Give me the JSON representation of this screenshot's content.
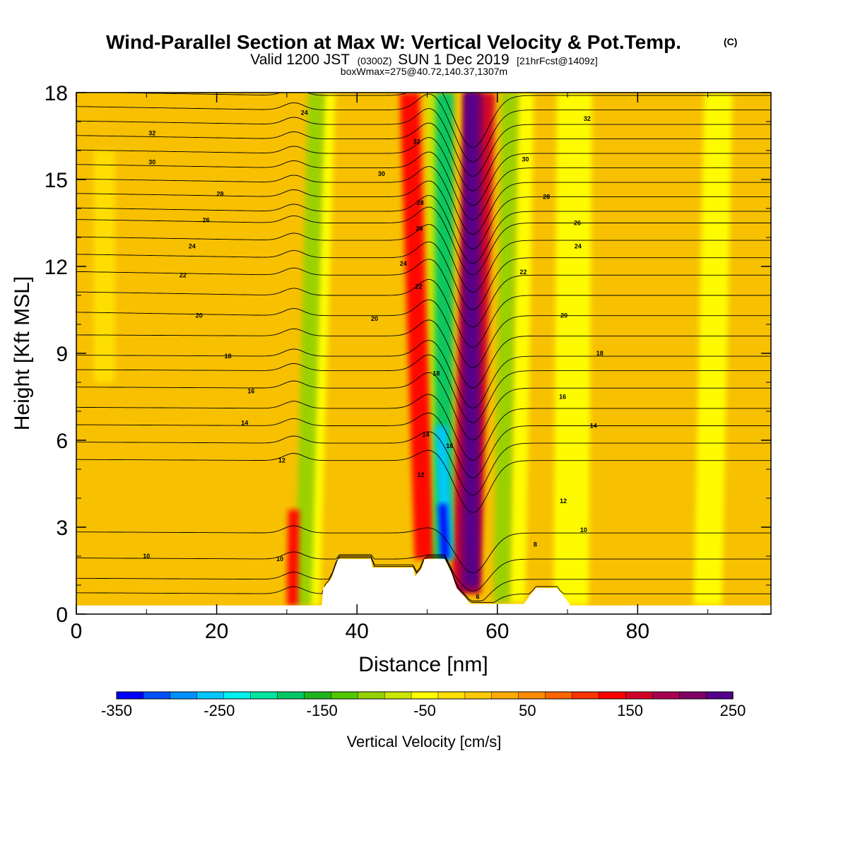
{
  "header": {
    "title": "Wind-Parallel Section at Max W: Vertical Velocity & Pot.Temp.",
    "title_mark": "(C)",
    "valid_prefix": "Valid 1200 JST",
    "valid_z": "(0300Z)",
    "valid_date": "SUN 1 Dec 2019",
    "forecast": "[21hrFcst@1409z]",
    "box_info": "boxWmax=275@40.72,140.37,1307m"
  },
  "chart_data": {
    "type": "heatmap",
    "xlabel": "Distance [nm]",
    "ylabel": "Height [Kft MSL]",
    "xlim": [
      0,
      99
    ],
    "ylim": [
      0,
      18
    ],
    "x_ticks": [
      "0",
      "20",
      "40",
      "60",
      "80"
    ],
    "y_ticks": [
      "0",
      "3",
      "6",
      "9",
      "12",
      "15",
      "18"
    ],
    "background_color": "#f7c000",
    "terrain_kft": [
      {
        "x": 35,
        "h": 0.35
      },
      {
        "x": 35.2,
        "h": 0.9
      },
      {
        "x": 36.3,
        "h": 1.2
      },
      {
        "x": 37.3,
        "h": 1.9
      },
      {
        "x": 42,
        "h": 1.9
      },
      {
        "x": 42.2,
        "h": 1.6
      },
      {
        "x": 48,
        "h": 1.6
      },
      {
        "x": 48.3,
        "h": 1.3
      },
      {
        "x": 49.3,
        "h": 1.6
      },
      {
        "x": 49.6,
        "h": 1.9
      },
      {
        "x": 52.5,
        "h": 1.9
      },
      {
        "x": 53.5,
        "h": 1.4
      },
      {
        "x": 54.2,
        "h": 0.9
      },
      {
        "x": 55.3,
        "h": 0.6
      },
      {
        "x": 56.2,
        "h": 0.35
      },
      {
        "x": 63.8,
        "h": 0.35
      },
      {
        "x": 64.5,
        "h": 0.6
      },
      {
        "x": 65.5,
        "h": 0.9
      },
      {
        "x": 68.5,
        "h": 0.9
      },
      {
        "x": 69.5,
        "h": 0.6
      },
      {
        "x": 70.3,
        "h": 0.35
      }
    ],
    "vertical_velocity_bands": [
      {
        "x_bottom": 30.8,
        "x_top": 31.0,
        "width_nm": 1.6,
        "y_from": 0.3,
        "y_to": 3.6,
        "value": 125
      },
      {
        "x_bottom": 32.3,
        "x_top": 34.2,
        "width_nm": 2.4,
        "y_from": 0.3,
        "y_to": 18,
        "value": -100
      },
      {
        "x_bottom": 33.8,
        "x_top": 36.0,
        "width_nm": 1.8,
        "y_from": 0.3,
        "y_to": 18,
        "value": -50
      },
      {
        "x_bottom": 49.6,
        "x_top": 47.5,
        "width_nm": 2.8,
        "y_from": 1.9,
        "y_to": 18,
        "value": 125
      },
      {
        "x_bottom": 51.0,
        "x_top": 51.0,
        "width_nm": 2.0,
        "y_from": 1.9,
        "y_to": 18,
        "value": -75
      },
      {
        "x_bottom": 52.3,
        "x_top": 52.5,
        "width_nm": 2.6,
        "y_from": 1.9,
        "y_to": 18,
        "value": -175
      },
      {
        "x_bottom": 52.8,
        "x_top": 52.0,
        "width_nm": 1.8,
        "y_from": 1.9,
        "y_to": 6.5,
        "value": -250
      },
      {
        "x_bottom": 52.6,
        "x_top": 52.2,
        "width_nm": 1.2,
        "y_from": 1.9,
        "y_to": 3.8,
        "value": -325
      },
      {
        "x_bottom": 55.5,
        "x_top": 57.6,
        "width_nm": 4.2,
        "y_from": 0.7,
        "y_to": 18,
        "value": 150
      },
      {
        "x_bottom": 56.0,
        "x_top": 56.6,
        "width_nm": 2.8,
        "y_from": 0.8,
        "y_to": 18,
        "value": 200
      },
      {
        "x_bottom": 56.3,
        "x_top": 56.3,
        "width_nm": 1.8,
        "y_from": 1.0,
        "y_to": 18,
        "value": 250
      },
      {
        "x_bottom": 60.6,
        "x_top": 61.8,
        "width_nm": 2.4,
        "y_from": 0.4,
        "y_to": 18,
        "value": -100
      },
      {
        "x_bottom": 62.8,
        "x_top": 64.0,
        "width_nm": 2.4,
        "y_from": 0.4,
        "y_to": 18,
        "value": -50
      },
      {
        "x_bottom": 70.5,
        "x_top": 71.0,
        "width_nm": 5.0,
        "y_from": 0.3,
        "y_to": 18,
        "value": -40
      },
      {
        "x_bottom": 90.0,
        "x_top": 91.5,
        "width_nm": 4.0,
        "y_from": 0.3,
        "y_to": 18,
        "value": -40
      },
      {
        "x_bottom": 4.0,
        "x_top": 4.0,
        "width_nm": 3.0,
        "y_from": 8.0,
        "y_to": 16.0,
        "value": -30
      }
    ],
    "colorbar": {
      "label": "Vertical Velocity [cm/s]",
      "min": -350,
      "max": 250,
      "tick_labels": [
        "-350",
        "-250",
        "-150",
        "-50",
        "50",
        "150",
        "250"
      ],
      "colors": [
        "#0000ff",
        "#0050ff",
        "#0090ff",
        "#00c8ff",
        "#00f0f0",
        "#00e6a0",
        "#00c864",
        "#1eb41e",
        "#50c800",
        "#96d200",
        "#cce600",
        "#ffff00",
        "#ffe000",
        "#ffc800",
        "#ffaa00",
        "#ff8c00",
        "#ff6400",
        "#ff3200",
        "#ff0000",
        "#d20028",
        "#aa0050",
        "#820064",
        "#55008c"
      ]
    },
    "isentropes": {
      "levels": [
        8,
        9,
        10,
        11,
        12,
        13,
        14,
        15,
        16,
        17,
        18,
        19,
        20,
        21,
        22,
        23,
        24,
        25,
        26,
        27,
        28,
        29,
        30,
        31,
        32,
        33,
        34
      ],
      "base_height_kft": {
        "8": 0.7,
        "9": 1.2,
        "10": 1.9,
        "11": 2.8,
        "12": 5.3,
        "13": 5.9,
        "14": 6.5,
        "15": 7.1,
        "16": 7.8,
        "17": 8.4,
        "18": 8.9,
        "19": 9.6,
        "20": 10.3,
        "21": 11.0,
        "22": 11.7,
        "23": 12.3,
        "24": 12.9,
        "25": 13.5,
        "26": 13.9,
        "27": 14.4,
        "28": 14.9,
        "29": 15.4,
        "30": 15.9,
        "31": 16.4,
        "32": 16.9,
        "33": 17.4,
        "34": 17.9
      },
      "labels": [
        {
          "text": "24",
          "x": 32.5,
          "y": 17.3
        },
        {
          "text": "32",
          "x": 10.8,
          "y": 16.6
        },
        {
          "text": "30",
          "x": 10.8,
          "y": 15.6
        },
        {
          "text": "28",
          "x": 20.5,
          "y": 14.5
        },
        {
          "text": "26",
          "x": 18.5,
          "y": 13.6
        },
        {
          "text": "24",
          "x": 16.5,
          "y": 12.7
        },
        {
          "text": "22",
          "x": 15.2,
          "y": 11.7
        },
        {
          "text": "20",
          "x": 17.5,
          "y": 10.3
        },
        {
          "text": "18",
          "x": 21.6,
          "y": 8.9
        },
        {
          "text": "16",
          "x": 24.9,
          "y": 7.7
        },
        {
          "text": "14",
          "x": 24.0,
          "y": 6.6
        },
        {
          "text": "12",
          "x": 29.3,
          "y": 5.3
        },
        {
          "text": "10",
          "x": 10.0,
          "y": 2.0
        },
        {
          "text": "10",
          "x": 29.0,
          "y": 1.9
        },
        {
          "text": "32",
          "x": 48.5,
          "y": 16.3
        },
        {
          "text": "30",
          "x": 43.5,
          "y": 15.2
        },
        {
          "text": "28",
          "x": 49.0,
          "y": 14.2
        },
        {
          "text": "26",
          "x": 48.9,
          "y": 13.3
        },
        {
          "text": "24",
          "x": 46.6,
          "y": 12.1
        },
        {
          "text": "22",
          "x": 48.8,
          "y": 11.3
        },
        {
          "text": "20",
          "x": 42.5,
          "y": 10.2
        },
        {
          "text": "18",
          "x": 51.3,
          "y": 8.3
        },
        {
          "text": "14",
          "x": 49.8,
          "y": 6.2
        },
        {
          "text": "16",
          "x": 53.2,
          "y": 5.8
        },
        {
          "text": "12",
          "x": 49.1,
          "y": 4.8
        },
        {
          "text": "6",
          "x": 57.2,
          "y": 0.6
        },
        {
          "text": "32",
          "x": 72.8,
          "y": 17.1
        },
        {
          "text": "30",
          "x": 64.0,
          "y": 15.7
        },
        {
          "text": "28",
          "x": 67.0,
          "y": 14.4
        },
        {
          "text": "26",
          "x": 71.4,
          "y": 13.5
        },
        {
          "text": "24",
          "x": 71.5,
          "y": 12.7
        },
        {
          "text": "22",
          "x": 63.7,
          "y": 11.8
        },
        {
          "text": "20",
          "x": 69.5,
          "y": 10.3
        },
        {
          "text": "18",
          "x": 74.6,
          "y": 9.0
        },
        {
          "text": "16",
          "x": 69.3,
          "y": 7.5
        },
        {
          "text": "14",
          "x": 73.7,
          "y": 6.5
        },
        {
          "text": "12",
          "x": 69.4,
          "y": 3.9
        },
        {
          "text": "10",
          "x": 72.3,
          "y": 2.9
        },
        {
          "text": "8",
          "x": 65.4,
          "y": 2.4
        }
      ]
    }
  }
}
